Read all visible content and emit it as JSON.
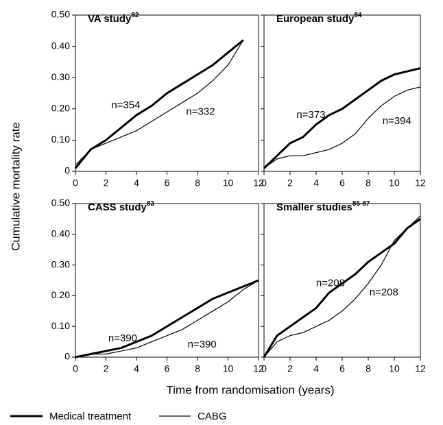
{
  "ylabel": "Cumulative mortality rate",
  "xlabel": "Time from randomisation (years)",
  "chart_data": [
    {
      "type": "line",
      "title": "VA study",
      "title_sup": "82",
      "x": [
        0,
        1,
        2,
        3,
        4,
        5,
        6,
        7,
        8,
        9,
        10,
        11
      ],
      "series": [
        {
          "name": "Medical treatment",
          "color": "#000000",
          "values": [
            0.01,
            0.07,
            0.1,
            0.14,
            0.18,
            0.21,
            0.25,
            0.28,
            0.31,
            0.34,
            0.38,
            0.42
          ]
        },
        {
          "name": "CABG",
          "color": "#000000",
          "values": [
            0.02,
            0.07,
            0.09,
            0.11,
            0.13,
            0.16,
            0.19,
            0.22,
            0.25,
            0.29,
            0.34,
            0.42
          ]
        }
      ],
      "annotations": [
        {
          "text": "n=354",
          "x": 3.3,
          "y": 0.21
        },
        {
          "text": "n=332",
          "x": 8.2,
          "y": 0.19
        }
      ],
      "xlim": [
        0,
        12
      ],
      "xticks": [
        0,
        2,
        4,
        6,
        8,
        10,
        12
      ],
      "ylim": [
        0,
        0.5
      ],
      "yticks": [
        0,
        {
          "value": 0.1,
          "label": "0.10"
        },
        {
          "value": 0.2,
          "label": "0.20"
        },
        {
          "value": 0.3,
          "label": "0.30"
        },
        {
          "value": 0.4,
          "label": "0.40"
        },
        {
          "value": 0.5,
          "label": "0.50"
        }
      ]
    },
    {
      "type": "line",
      "title": "European study",
      "title_sup": "84",
      "x": [
        0,
        1,
        2,
        3,
        4,
        5,
        6,
        7,
        8,
        9,
        10,
        11,
        12
      ],
      "series": [
        {
          "name": "Medical treatment",
          "color": "#000000",
          "values": [
            0.01,
            0.05,
            0.09,
            0.11,
            0.15,
            0.18,
            0.2,
            0.23,
            0.26,
            0.29,
            0.31,
            0.32,
            0.33
          ]
        },
        {
          "name": "CABG",
          "color": "#000000",
          "values": [
            0.01,
            0.04,
            0.05,
            0.05,
            0.06,
            0.07,
            0.09,
            0.12,
            0.17,
            0.21,
            0.24,
            0.26,
            0.27
          ]
        }
      ],
      "annotations": [
        {
          "text": "n=373",
          "x": 3.6,
          "y": 0.18
        },
        {
          "text": "n=394",
          "x": 10.2,
          "y": 0.16
        }
      ],
      "xlim": [
        0,
        12
      ],
      "xticks": [
        0,
        2,
        4,
        6,
        8,
        10,
        12
      ],
      "ylim": [
        0,
        0.5
      ],
      "yticks": [
        0,
        {
          "value": 0.1,
          "label": "0.10"
        },
        {
          "value": 0.2,
          "label": "0.20"
        },
        {
          "value": 0.3,
          "label": "0.30"
        },
        {
          "value": 0.4,
          "label": "0.40"
        },
        {
          "value": 0.5,
          "label": "0.50"
        }
      ]
    },
    {
      "type": "line",
      "title": "CASS study",
      "title_sup": "83",
      "x": [
        0,
        1,
        2,
        3,
        4,
        5,
        6,
        7,
        8,
        9,
        10,
        11,
        12
      ],
      "series": [
        {
          "name": "Medical treatment",
          "color": "#000000",
          "values": [
            0,
            0.01,
            0.02,
            0.03,
            0.05,
            0.07,
            0.1,
            0.13,
            0.16,
            0.19,
            0.21,
            0.23,
            0.25
          ]
        },
        {
          "name": "CABG",
          "color": "#000000",
          "values": [
            0,
            0.01,
            0.01,
            0.02,
            0.03,
            0.05,
            0.07,
            0.09,
            0.12,
            0.15,
            0.18,
            0.22,
            0.25
          ]
        }
      ],
      "annotations": [
        {
          "text": "n=390",
          "x": 3.1,
          "y": 0.06
        },
        {
          "text": "n=390",
          "x": 8.3,
          "y": 0.04
        }
      ],
      "xlim": [
        0,
        12
      ],
      "xticks": [
        0,
        2,
        4,
        6,
        8,
        10,
        12
      ],
      "ylim": [
        0,
        0.5
      ],
      "yticks": [
        0,
        {
          "value": 0.1,
          "label": "0.10"
        },
        {
          "value": 0.2,
          "label": "0.20"
        },
        {
          "value": 0.3,
          "label": "0.30"
        },
        {
          "value": 0.4,
          "label": "0.40"
        },
        {
          "value": 0.5,
          "label": "0.50"
        }
      ]
    },
    {
      "type": "line",
      "title": "Smaller studies",
      "title_sup": "85-87",
      "x": [
        0,
        1,
        2,
        3,
        4,
        5,
        6,
        7,
        8,
        9,
        10,
        11,
        12
      ],
      "series": [
        {
          "name": "Medical treatment",
          "color": "#000000",
          "values": [
            0,
            0.07,
            0.1,
            0.13,
            0.16,
            0.21,
            0.24,
            0.27,
            0.31,
            0.34,
            0.37,
            0.42,
            0.45
          ]
        },
        {
          "name": "CABG",
          "color": "#000000",
          "values": [
            0,
            0.05,
            0.07,
            0.08,
            0.1,
            0.12,
            0.15,
            0.19,
            0.24,
            0.3,
            0.38,
            0.42,
            0.46
          ]
        }
      ],
      "annotations": [
        {
          "text": "n=208",
          "x": 5.1,
          "y": 0.24
        },
        {
          "text": "n=208",
          "x": 9.2,
          "y": 0.21
        }
      ],
      "xlim": [
        0,
        12
      ],
      "xticks": [
        0,
        2,
        4,
        6,
        8,
        10,
        12
      ],
      "ylim": [
        0,
        0.5
      ],
      "yticks": [
        0,
        {
          "value": 0.1,
          "label": "0.10"
        },
        {
          "value": 0.2,
          "label": "0.20"
        },
        {
          "value": 0.3,
          "label": "0.30"
        },
        {
          "value": 0.4,
          "label": "0.40"
        },
        {
          "value": 0.5,
          "label": "0.50"
        }
      ]
    }
  ]
}
